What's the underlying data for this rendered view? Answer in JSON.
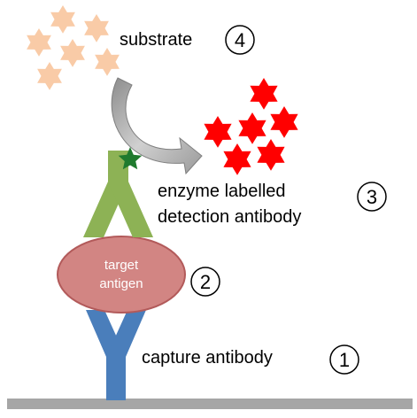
{
  "labels": {
    "substrate": "substrate",
    "enzyme_line1": "enzyme labelled",
    "enzyme_line2": "detection antibody",
    "capture": "capture antibody",
    "antigen_line1": "target",
    "antigen_line2": "antigen"
  },
  "steps": [
    "1",
    "2",
    "3",
    "4"
  ],
  "colors": {
    "substrate_star": "#F9CBA7",
    "product_star": "#FF0000",
    "enzyme_star": "#1F7A2E",
    "detection_antibody": "#8DB255",
    "capture_antibody": "#4A7EBB",
    "antigen_fill": "#D28583",
    "antigen_stroke": "#B25A5A",
    "arrow": "#A6A6A6",
    "baseline": "#A6A6A6"
  }
}
